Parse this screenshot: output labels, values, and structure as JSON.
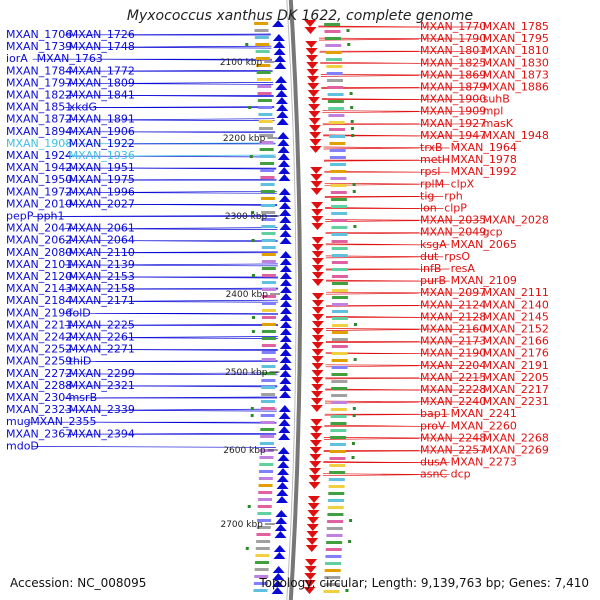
{
  "title": "Myxococcus xanthus DK 1622, complete genome",
  "accession_text": "Accession: NC_008095",
  "summary_text": "Topology: circular; Length: 9,139,763 bp; Genes: 7,410",
  "colors": {
    "forward": "#0a0ad8",
    "reverse": "#e01010",
    "highlight": "#40c0e0",
    "backbone": "#777777",
    "feature_green": "#2a8a2a"
  },
  "scale_ticks": [
    {
      "label": "2100 kbp"
    },
    {
      "label": "2200 kbp"
    },
    {
      "label": "2300 kbp"
    },
    {
      "label": "2400 kbp"
    },
    {
      "label": "2500 kbp"
    },
    {
      "label": "2600 kbp"
    },
    {
      "label": "2700 kbp"
    }
  ],
  "left_labels": [
    {
      "text": "MXAN_1706",
      "highlight": false
    },
    {
      "text": "MXAN_1726",
      "highlight": false
    },
    {
      "text": "MXAN_1739",
      "highlight": false
    },
    {
      "text": "MXAN_1748",
      "highlight": false
    },
    {
      "text": "iorA",
      "highlight": false
    },
    {
      "text": "MXAN_1763",
      "highlight": false
    },
    {
      "text": "MXAN_1784",
      "highlight": false
    },
    {
      "text": "MXAN_1772",
      "highlight": false
    },
    {
      "text": "MXAN_1797",
      "highlight": false
    },
    {
      "text": "MXAN_1809",
      "highlight": false
    },
    {
      "text": "MXAN_1822",
      "highlight": false
    },
    {
      "text": "MXAN_1841",
      "highlight": false
    },
    {
      "text": "MXAN_1851",
      "highlight": false
    },
    {
      "text": "xkdG",
      "highlight": false
    },
    {
      "text": "MXAN_1872",
      "highlight": false
    },
    {
      "text": "MXAN_1891",
      "highlight": false
    },
    {
      "text": "MXAN_1894",
      "highlight": false
    },
    {
      "text": "MXAN_1906",
      "highlight": false
    },
    {
      "text": "MXAN_1908",
      "highlight": true
    },
    {
      "text": "MXAN_1922",
      "highlight": false
    },
    {
      "text": "MXAN_1924",
      "highlight": false
    },
    {
      "text": "MXAN_1936",
      "highlight": true
    },
    {
      "text": "MXAN_1942",
      "highlight": false
    },
    {
      "text": "MXAN_1951",
      "highlight": false
    },
    {
      "text": "MXAN_1950",
      "highlight": false
    },
    {
      "text": "MXAN_1975",
      "highlight": false
    },
    {
      "text": "MXAN_1972",
      "highlight": false
    },
    {
      "text": "MXAN_1996",
      "highlight": false
    },
    {
      "text": "MXAN_2010",
      "highlight": false
    },
    {
      "text": "MXAN_2027",
      "highlight": false
    },
    {
      "text": "pepP",
      "highlight": false
    },
    {
      "text": "pph1",
      "highlight": false
    },
    {
      "text": "MXAN_2047",
      "highlight": false
    },
    {
      "text": "MXAN_2061",
      "highlight": false
    },
    {
      "text": "MXAN_2062",
      "highlight": false
    },
    {
      "text": "MXAN_2064",
      "highlight": false
    },
    {
      "text": "MXAN_2080",
      "highlight": false
    },
    {
      "text": "MXAN_2110",
      "highlight": false
    },
    {
      "text": "MXAN_2101",
      "highlight": false
    },
    {
      "text": "MXAN_2139",
      "highlight": false
    },
    {
      "text": "MXAN_2120",
      "highlight": false
    },
    {
      "text": "MXAN_2153",
      "highlight": false
    },
    {
      "text": "MXAN_2143",
      "highlight": false
    },
    {
      "text": "MXAN_2158",
      "highlight": false
    },
    {
      "text": "MXAN_2184",
      "highlight": false
    },
    {
      "text": "MXAN_2171",
      "highlight": false
    },
    {
      "text": "MXAN_2196",
      "highlight": false
    },
    {
      "text": "folD",
      "highlight": false
    },
    {
      "text": "MXAN_2211",
      "highlight": false
    },
    {
      "text": "MXAN_2225",
      "highlight": false
    },
    {
      "text": "MXAN_2242",
      "highlight": false
    },
    {
      "text": "MXAN_2261",
      "highlight": false
    },
    {
      "text": "MXAN_2252",
      "highlight": false
    },
    {
      "text": "MXAN_2271",
      "highlight": false
    },
    {
      "text": "MXAN_2259",
      "highlight": false
    },
    {
      "text": "thiD",
      "highlight": false
    },
    {
      "text": "MXAN_2272",
      "highlight": false
    },
    {
      "text": "MXAN_2299",
      "highlight": false
    },
    {
      "text": "MXAN_2288",
      "highlight": false
    },
    {
      "text": "MXAN_2321",
      "highlight": false
    },
    {
      "text": "MXAN_2304",
      "highlight": false
    },
    {
      "text": "msrB",
      "highlight": false
    },
    {
      "text": "MXAN_2323",
      "highlight": false
    },
    {
      "text": "MXAN_2339",
      "highlight": false
    },
    {
      "text": "mug",
      "highlight": false
    },
    {
      "text": "MXAN_2355",
      "highlight": false
    },
    {
      "text": "MXAN_2367",
      "highlight": false
    },
    {
      "text": "MXAN_2394",
      "highlight": false
    },
    {
      "text": "mdoD",
      "highlight": false
    }
  ],
  "right_labels": [
    {
      "text": "MXAN_1770"
    },
    {
      "text": "MXAN_1785"
    },
    {
      "text": "MXAN_1790"
    },
    {
      "text": "MXAN_1795"
    },
    {
      "text": "MXAN_1801"
    },
    {
      "text": "MXAN_1810"
    },
    {
      "text": "MXAN_1825"
    },
    {
      "text": "MXAN_1830"
    },
    {
      "text": "MXAN_1869"
    },
    {
      "text": "MXAN_1873"
    },
    {
      "text": "MXAN_1879"
    },
    {
      "text": "MXAN_1886"
    },
    {
      "text": "MXAN_1900"
    },
    {
      "text": "suhB"
    },
    {
      "text": "MXAN_1909"
    },
    {
      "text": "mpl"
    },
    {
      "text": "MXAN_1927"
    },
    {
      "text": "masK"
    },
    {
      "text": "MXAN_1947"
    },
    {
      "text": "MXAN_1948"
    },
    {
      "text": "trxB"
    },
    {
      "text": "MXAN_1964"
    },
    {
      "text": "metH"
    },
    {
      "text": "MXAN_1978"
    },
    {
      "text": "rpsI"
    },
    {
      "text": "MXAN_1992"
    },
    {
      "text": "rplM"
    },
    {
      "text": "clpX"
    },
    {
      "text": "tig"
    },
    {
      "text": "rph"
    },
    {
      "text": "lon"
    },
    {
      "text": "clpP"
    },
    {
      "text": "MXAN_2035"
    },
    {
      "text": "MXAN_2028"
    },
    {
      "text": "MXAN_2049"
    },
    {
      "text": "gcp"
    },
    {
      "text": "ksgA"
    },
    {
      "text": "MXAN_2065"
    },
    {
      "text": "dut"
    },
    {
      "text": "rpsO"
    },
    {
      "text": "infB"
    },
    {
      "text": "resA"
    },
    {
      "text": "purB"
    },
    {
      "text": "MXAN_2109"
    },
    {
      "text": "MXAN_2097"
    },
    {
      "text": "MXAN_2111"
    },
    {
      "text": "MXAN_2124"
    },
    {
      "text": "MXAN_2140"
    },
    {
      "text": "MXAN_2128"
    },
    {
      "text": "MXAN_2145"
    },
    {
      "text": "MXAN_2160"
    },
    {
      "text": "MXAN_2152"
    },
    {
      "text": "MXAN_2173"
    },
    {
      "text": "MXAN_2166"
    },
    {
      "text": "MXAN_2190"
    },
    {
      "text": "MXAN_2176"
    },
    {
      "text": "MXAN_2204"
    },
    {
      "text": "MXAN_2191"
    },
    {
      "text": "MXAN_2215"
    },
    {
      "text": "MXAN_2205"
    },
    {
      "text": "MXAN_2228"
    },
    {
      "text": "MXAN_2217"
    },
    {
      "text": "MXAN_2240"
    },
    {
      "text": "MXAN_2231"
    },
    {
      "text": "bap1"
    },
    {
      "text": "MXAN_2241"
    },
    {
      "text": "proV"
    },
    {
      "text": "MXAN_2260"
    },
    {
      "text": "MXAN_2248"
    },
    {
      "text": "MXAN_2268"
    },
    {
      "text": "MXAN_2257"
    },
    {
      "text": "MXAN_2269"
    },
    {
      "text": "dusA"
    },
    {
      "text": "MXAN_2273"
    },
    {
      "text": "asnC"
    },
    {
      "text": "dcp"
    }
  ]
}
